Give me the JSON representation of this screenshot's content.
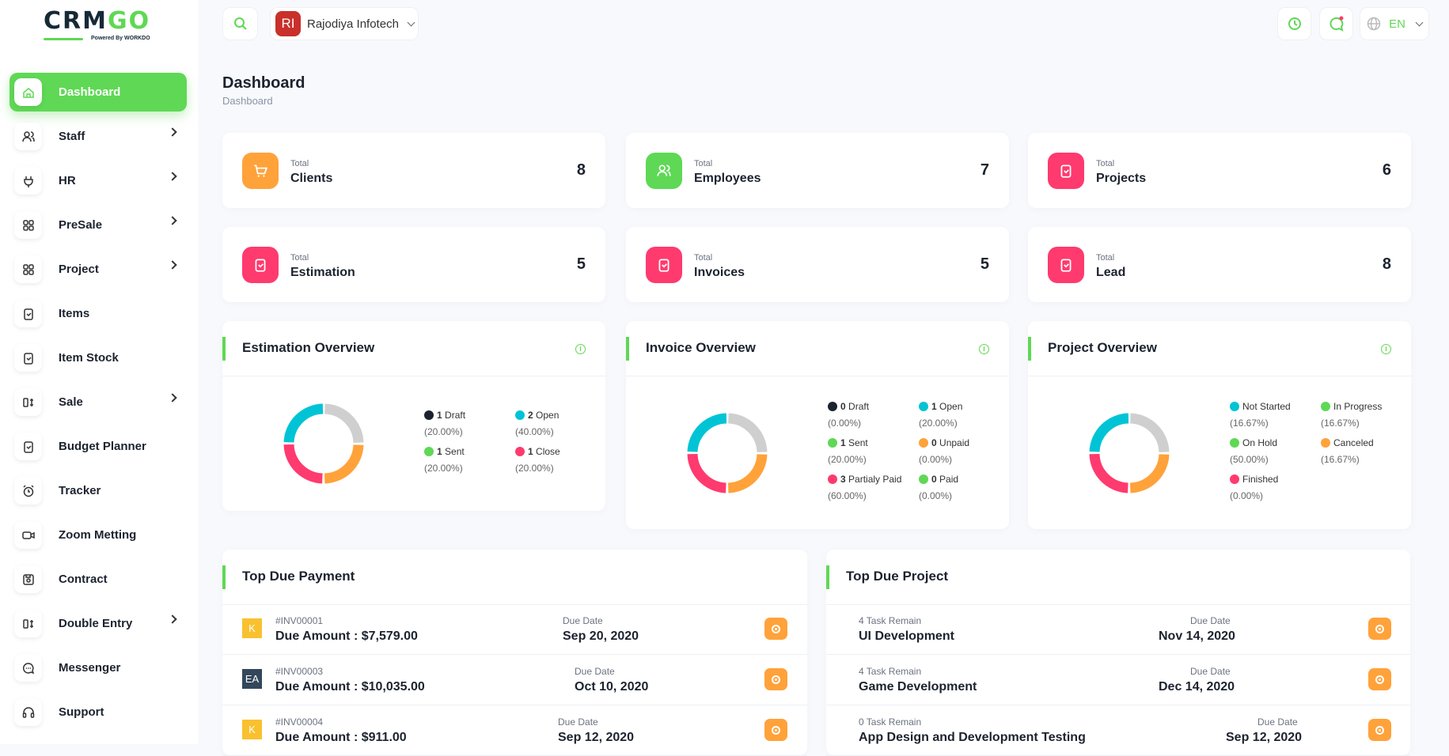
{
  "logo": {
    "text_a": "CRM",
    "text_b": "GO",
    "tagline": "Powered By WORKDO"
  },
  "sidebar": {
    "items": [
      {
        "label": "Dashboard",
        "icon": "home-icon",
        "active": true,
        "chevron": false
      },
      {
        "label": "Staff",
        "icon": "users-icon",
        "chevron": true
      },
      {
        "label": "HR",
        "icon": "plug-icon",
        "chevron": true
      },
      {
        "label": "PreSale",
        "icon": "grid-icon",
        "chevron": true
      },
      {
        "label": "Project",
        "icon": "grid-icon",
        "chevron": true
      },
      {
        "label": "Items",
        "icon": "clipboard-icon",
        "chevron": false
      },
      {
        "label": "Item Stock",
        "icon": "clipboard-icon",
        "chevron": false
      },
      {
        "label": "Sale",
        "icon": "switch-icon",
        "chevron": true
      },
      {
        "label": "Budget Planner",
        "icon": "clipboard-icon",
        "chevron": false
      },
      {
        "label": "Tracker",
        "icon": "alarm-icon",
        "chevron": false
      },
      {
        "label": "Zoom Metting",
        "icon": "video-icon",
        "chevron": false
      },
      {
        "label": "Contract",
        "icon": "device-floppy-icon",
        "chevron": false
      },
      {
        "label": "Double Entry",
        "icon": "switch-icon",
        "chevron": true
      },
      {
        "label": "Messenger",
        "icon": "message-icon",
        "chevron": false
      },
      {
        "label": "Support",
        "icon": "headset-icon",
        "chevron": false
      }
    ]
  },
  "topbar": {
    "company_initials": "RI",
    "company_name": "Rajodiya Infotech",
    "language": "EN"
  },
  "page": {
    "title": "Dashboard",
    "breadcrumb": "Dashboard"
  },
  "stats": [
    {
      "label": "Total",
      "name": "Clients",
      "value": "8",
      "color": "#ffa23a"
    },
    {
      "label": "Total",
      "name": "Employees",
      "value": "7",
      "color": "#5fd855"
    },
    {
      "label": "Total",
      "name": "Projects",
      "value": "6",
      "color": "#ff3a6e"
    },
    {
      "label": "Total",
      "name": "Estimation",
      "value": "5",
      "color": "#ff3a6e"
    },
    {
      "label": "Total",
      "name": "Invoices",
      "value": "5",
      "color": "#ff3a6e"
    },
    {
      "label": "Total",
      "name": "Lead",
      "value": "8",
      "color": "#ff3a6e"
    }
  ],
  "overviews": [
    {
      "title": "Estimation Overview",
      "legend": [
        {
          "count": "1",
          "label": "Draft",
          "pct": "(20.00%)",
          "color": "#1c232f"
        },
        {
          "count": "2",
          "label": "Open",
          "pct": "(40.00%)",
          "color": "#00c4d5"
        },
        {
          "count": "1",
          "label": "Sent",
          "pct": "(20.00%)",
          "color": "#5fd855"
        },
        {
          "count": "1",
          "label": "Close",
          "pct": "(20.00%)",
          "color": "#ff3a6e"
        }
      ]
    },
    {
      "title": "Invoice Overview",
      "legend": [
        {
          "count": "0",
          "label": "Draft",
          "pct": "(0.00%)",
          "color": "#1c232f"
        },
        {
          "count": "1",
          "label": "Open",
          "pct": "(20.00%)",
          "color": "#00c4d5"
        },
        {
          "count": "1",
          "label": "Sent",
          "pct": "(20.00%)",
          "color": "#5fd855"
        },
        {
          "count": "0",
          "label": "Unpaid",
          "pct": "(0.00%)",
          "color": "#ffa23a"
        },
        {
          "count": "3",
          "label": "Partialy Paid",
          "pct": "(60.00%)",
          "color": "#ff3a6e"
        },
        {
          "count": "0",
          "label": "Paid",
          "pct": "(0.00%)",
          "color": "#5fd855"
        }
      ]
    },
    {
      "title": "Project Overview",
      "legend": [
        {
          "count": "",
          "label": "Not Started",
          "pct": "(16.67%)",
          "color": "#00c4d5"
        },
        {
          "count": "",
          "label": "In Progress",
          "pct": "(16.67%)",
          "color": "#5fd855"
        },
        {
          "count": "",
          "label": "On Hold",
          "pct": "(50.00%)",
          "color": "#5fd855"
        },
        {
          "count": "",
          "label": "Canceled",
          "pct": "(16.67%)",
          "color": "#ffa23a"
        },
        {
          "count": "",
          "label": "Finished",
          "pct": "(0.00%)",
          "color": "#ff3a6e"
        }
      ]
    }
  ],
  "donut_colors": [
    "#cfcfcf",
    "#ffa23a",
    "#ff3a6e",
    "#00c4d5"
  ],
  "due_payment": {
    "title": "Top Due Payment",
    "rows": [
      {
        "avatar": "K",
        "avatar_color": "#f9c12f",
        "invoice": "#INV00001",
        "amount": "Due Amount : $7,579.00",
        "date_label": "Due Date",
        "date": "Sep 20, 2020"
      },
      {
        "avatar": "EA",
        "avatar_color": "#33475b",
        "invoice": "#INV00003",
        "amount": "Due Amount : $10,035.00",
        "date_label": "Due Date",
        "date": "Oct 10, 2020"
      },
      {
        "avatar": "K",
        "avatar_color": "#f9c12f",
        "invoice": "#INV00004",
        "amount": "Due Amount : $911.00",
        "date_label": "Due Date",
        "date": "Sep 12, 2020"
      }
    ]
  },
  "due_project": {
    "title": "Top Due Project",
    "rows": [
      {
        "tasks": "4 Task Remain",
        "name": "UI Development",
        "date_label": "Due Date",
        "date": "Nov 14, 2020"
      },
      {
        "tasks": "4 Task Remain",
        "name": "Game Development",
        "date_label": "Due Date",
        "date": "Dec 14, 2020"
      },
      {
        "tasks": "0 Task Remain",
        "name": "App Design and Development Testing",
        "date_label": "Due Date",
        "date": "Sep 12, 2020"
      }
    ]
  }
}
